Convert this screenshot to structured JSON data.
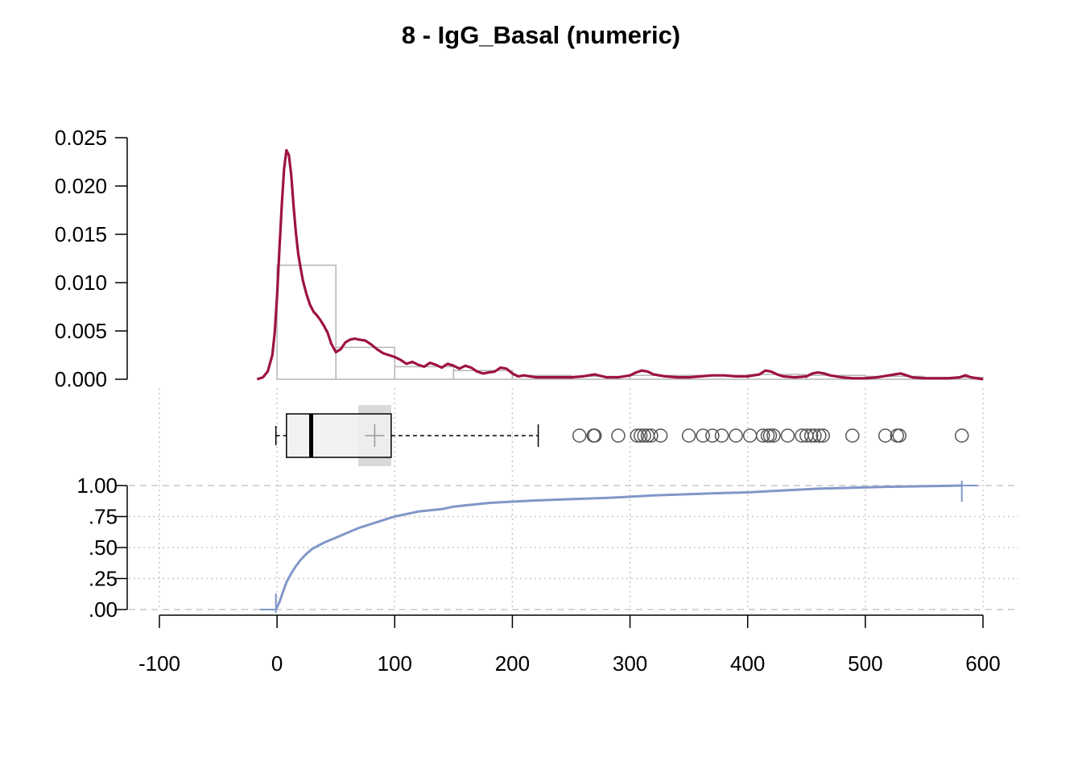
{
  "chart_data": {
    "type": "histogram-density-boxplot-ecdf",
    "title": "8 - IgG_Basal (numeric)",
    "colors": {
      "density": "#9e1244",
      "histogram": "#b5b5b5",
      "ecdf": "#8097c8",
      "grid": "#c8c8c8",
      "box_fill": "#f0f0f0",
      "mean_ci": "#d9d9d9",
      "outlier": "#555555"
    },
    "x_axis": {
      "range": [
        -100,
        600
      ],
      "ticks": [
        -100,
        0,
        100,
        200,
        300,
        400,
        500,
        600
      ],
      "tick_labels": [
        "-100",
        "0",
        "100",
        "200",
        "300",
        "400",
        "500",
        "600"
      ]
    },
    "density_panel": {
      "ylim": [
        0,
        0.025
      ],
      "y_ticks": [
        0,
        0.005,
        0.01,
        0.015,
        0.02,
        0.025
      ],
      "y_tick_labels": [
        "0.000",
        "0.005",
        "0.010",
        "0.015",
        "0.020",
        "0.025"
      ],
      "histogram": [
        {
          "x0": -50,
          "x1": 0,
          "density": 0.0
        },
        {
          "x0": 0,
          "x1": 50,
          "density": 0.0118
        },
        {
          "x0": 50,
          "x1": 100,
          "density": 0.0033
        },
        {
          "x0": 100,
          "x1": 150,
          "density": 0.0013
        },
        {
          "x0": 150,
          "x1": 200,
          "density": 0.0009
        },
        {
          "x0": 200,
          "x1": 250,
          "density": 0.0004
        },
        {
          "x0": 250,
          "x1": 300,
          "density": 0.0003
        },
        {
          "x0": 300,
          "x1": 350,
          "density": 0.0004
        },
        {
          "x0": 350,
          "x1": 400,
          "density": 0.0004
        },
        {
          "x0": 400,
          "x1": 450,
          "density": 0.0005
        },
        {
          "x0": 450,
          "x1": 500,
          "density": 0.0004
        },
        {
          "x0": 500,
          "x1": 550,
          "density": 0.0003
        },
        {
          "x0": 550,
          "x1": 600,
          "density": 0.0002
        }
      ],
      "density_curve": {
        "x": [
          -17,
          -12,
          -8,
          -4,
          -2,
          0,
          2,
          4,
          6,
          8,
          10,
          12,
          14,
          16,
          18,
          20,
          22,
          25,
          28,
          31,
          34,
          37,
          40,
          43,
          46,
          50,
          54,
          58,
          62,
          66,
          70,
          75,
          80,
          85,
          90,
          95,
          100,
          105,
          110,
          115,
          120,
          125,
          130,
          135,
          140,
          145,
          150,
          155,
          160,
          165,
          170,
          175,
          180,
          185,
          190,
          195,
          200,
          205,
          210,
          215,
          220,
          230,
          240,
          250,
          260,
          270,
          280,
          290,
          300,
          305,
          310,
          315,
          320,
          330,
          340,
          350,
          360,
          370,
          380,
          390,
          400,
          405,
          410,
          415,
          420,
          425,
          430,
          440,
          450,
          455,
          460,
          465,
          470,
          480,
          490,
          500,
          510,
          520,
          525,
          530,
          535,
          540,
          550,
          560,
          570,
          580,
          585,
          590,
          600
        ],
        "y": [
          0.0,
          0.0002,
          0.0008,
          0.0025,
          0.0048,
          0.0085,
          0.0135,
          0.018,
          0.0218,
          0.0237,
          0.0232,
          0.0212,
          0.018,
          0.0152,
          0.013,
          0.0115,
          0.0102,
          0.0088,
          0.0077,
          0.007,
          0.0066,
          0.0061,
          0.0055,
          0.0048,
          0.0037,
          0.0028,
          0.0031,
          0.0038,
          0.0041,
          0.0042,
          0.0041,
          0.004,
          0.0036,
          0.0031,
          0.0027,
          0.0025,
          0.0023,
          0.002,
          0.0016,
          0.0018,
          0.0015,
          0.0013,
          0.0017,
          0.0015,
          0.0012,
          0.0016,
          0.0014,
          0.0011,
          0.0014,
          0.0012,
          0.0008,
          0.0006,
          0.0007,
          0.0008,
          0.0012,
          0.0011,
          0.0006,
          0.0003,
          0.0004,
          0.0003,
          0.0002,
          0.0002,
          0.0002,
          0.0002,
          0.0003,
          0.0005,
          0.0002,
          0.0002,
          0.0004,
          0.0007,
          0.0009,
          0.0008,
          0.0005,
          0.0003,
          0.0002,
          0.0002,
          0.0003,
          0.0004,
          0.0004,
          0.0003,
          0.0003,
          0.0004,
          0.0005,
          0.0009,
          0.0008,
          0.0005,
          0.0003,
          0.0002,
          0.0003,
          0.0006,
          0.0007,
          0.0006,
          0.0004,
          0.0002,
          0.0001,
          0.0001,
          0.0002,
          0.0004,
          0.0005,
          0.0006,
          0.0004,
          0.0002,
          0.0001,
          0.0001,
          0.0001,
          0.0002,
          0.0004,
          0.0002,
          0.0
        ]
      }
    },
    "boxplot": {
      "min": -1,
      "q1": 8,
      "median": 29,
      "q3": 97,
      "whisker_high": 222,
      "mean": 83,
      "mean_ci": [
        69,
        97
      ],
      "outliers": [
        257,
        269,
        270,
        290,
        306,
        309,
        312,
        315,
        318,
        326,
        350,
        362,
        370,
        378,
        390,
        402,
        413,
        417,
        419,
        422,
        434,
        446,
        450,
        454,
        457,
        461,
        464,
        489,
        517,
        527,
        529,
        582
      ]
    },
    "ecdf_panel": {
      "ylim": [
        0,
        1
      ],
      "y_ticks": [
        0,
        0.25,
        0.5,
        0.75,
        1.0
      ],
      "y_tick_labels": [
        ".00",
        ".25",
        ".50",
        ".75",
        "1.00"
      ],
      "x": [
        -1,
        2,
        5,
        8,
        12,
        16,
        20,
        25,
        30,
        40,
        50,
        60,
        70,
        80,
        90,
        100,
        110,
        120,
        130,
        140,
        150,
        160,
        170,
        180,
        200,
        220,
        250,
        280,
        300,
        320,
        350,
        380,
        400,
        420,
        440,
        460,
        480,
        500,
        520,
        540,
        560,
        582
      ],
      "y": [
        0.0,
        0.06,
        0.14,
        0.22,
        0.29,
        0.35,
        0.4,
        0.45,
        0.49,
        0.54,
        0.58,
        0.62,
        0.66,
        0.69,
        0.72,
        0.75,
        0.77,
        0.79,
        0.8,
        0.81,
        0.83,
        0.84,
        0.85,
        0.86,
        0.87,
        0.88,
        0.89,
        0.9,
        0.91,
        0.92,
        0.93,
        0.94,
        0.945,
        0.955,
        0.965,
        0.975,
        0.98,
        0.985,
        0.99,
        0.993,
        0.996,
        1.0
      ]
    }
  }
}
